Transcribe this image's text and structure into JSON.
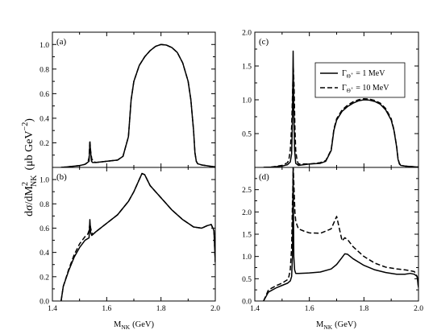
{
  "figure": {
    "ylabel_main": "dσ/dM",
    "ylabel_sup": "2",
    "ylabel_sub": "NK",
    "ylabel_units": "(μb GeV",
    "ylabel_units_sup": "−2",
    "ylabel_close": ")",
    "xlabel_main": "M",
    "xlabel_sub": "NK",
    "xlabel_units": "(GeV)"
  },
  "legend": {
    "gamma": "Γ",
    "theta": "Θ",
    "plus": "+",
    "entry1": "= 1 MeV",
    "entry2": "= 10 MeV"
  },
  "chart_data": [
    {
      "panel": "a",
      "label": "(a)",
      "type": "line",
      "xlim": [
        1.4,
        2.0
      ],
      "ylim": [
        0.0,
        1.1
      ],
      "xticks": [
        1.4,
        1.6,
        1.8,
        2.0
      ],
      "xticklabels_shown": false,
      "yticks": [
        0.0,
        0.2,
        0.4,
        0.6,
        0.8,
        1.0
      ],
      "yticklabels": [
        "",
        "0.2",
        "0.4",
        "0.6",
        "0.8",
        "1.0"
      ],
      "series": [
        {
          "style": "solid",
          "x": [
            1.432,
            1.45,
            1.5,
            1.52,
            1.535,
            1.538,
            1.541,
            1.544,
            1.548,
            1.56,
            1.6,
            1.64,
            1.66,
            1.68,
            1.69,
            1.7,
            1.72,
            1.74,
            1.76,
            1.78,
            1.8,
            1.82,
            1.84,
            1.86,
            1.88,
            1.9,
            1.91,
            1.92,
            1.925,
            1.93,
            1.935,
            1.95,
            1.98,
            2.0
          ],
          "y": [
            0.0,
            0.003,
            0.015,
            0.025,
            0.05,
            0.2,
            0.12,
            0.05,
            0.04,
            0.04,
            0.05,
            0.06,
            0.09,
            0.25,
            0.55,
            0.7,
            0.83,
            0.9,
            0.95,
            0.985,
            1.0,
            0.995,
            0.975,
            0.935,
            0.85,
            0.7,
            0.55,
            0.3,
            0.12,
            0.05,
            0.03,
            0.02,
            0.01,
            0.005
          ]
        },
        {
          "style": "dashed",
          "x": [
            1.432,
            1.45,
            1.5,
            1.52,
            1.53,
            1.535,
            1.538,
            1.541,
            1.545,
            1.55,
            1.56,
            1.6,
            1.64,
            1.66,
            1.68,
            1.69,
            1.7,
            1.72,
            1.74,
            1.76,
            1.78,
            1.8,
            1.82,
            1.84,
            1.86,
            1.88,
            1.9,
            1.91,
            1.92,
            1.925,
            1.93,
            1.935,
            1.95,
            1.98,
            2.0
          ],
          "y": [
            0.0,
            0.003,
            0.015,
            0.025,
            0.04,
            0.08,
            0.22,
            0.13,
            0.07,
            0.05,
            0.04,
            0.05,
            0.06,
            0.09,
            0.25,
            0.55,
            0.7,
            0.83,
            0.9,
            0.95,
            0.985,
            1.0,
            0.995,
            0.975,
            0.935,
            0.85,
            0.7,
            0.55,
            0.3,
            0.12,
            0.05,
            0.03,
            0.02,
            0.01,
            0.005
          ]
        }
      ]
    },
    {
      "panel": "b",
      "label": "(b)",
      "type": "line",
      "xlim": [
        1.4,
        2.0
      ],
      "ylim": [
        0.0,
        1.1
      ],
      "xticks": [
        1.4,
        1.6,
        1.8,
        2.0
      ],
      "xticklabels": [
        "1.4",
        "1.6",
        "1.8",
        "2.0"
      ],
      "yticks": [
        0.0,
        0.2,
        0.4,
        0.6,
        0.8,
        1.0
      ],
      "yticklabels": [
        "0.0",
        "0.2",
        "0.4",
        "0.6",
        "0.8",
        "1.0"
      ],
      "series": [
        {
          "style": "solid",
          "x": [
            1.432,
            1.44,
            1.46,
            1.48,
            1.5,
            1.52,
            1.535,
            1.538,
            1.541,
            1.545,
            1.56,
            1.6,
            1.64,
            1.68,
            1.7,
            1.72,
            1.73,
            1.74,
            1.76,
            1.8,
            1.84,
            1.88,
            1.9,
            1.92,
            1.95,
            1.97,
            1.985,
            1.995,
            2.0
          ],
          "y": [
            0.0,
            0.12,
            0.25,
            0.36,
            0.44,
            0.5,
            0.52,
            0.67,
            0.56,
            0.54,
            0.57,
            0.64,
            0.71,
            0.82,
            0.9,
            1.0,
            1.05,
            1.04,
            0.95,
            0.85,
            0.75,
            0.67,
            0.64,
            0.61,
            0.6,
            0.62,
            0.63,
            0.58,
            0.32
          ]
        },
        {
          "style": "dashed",
          "x": [
            1.432,
            1.44,
            1.46,
            1.48,
            1.5,
            1.52,
            1.53,
            1.535,
            1.538,
            1.541,
            1.545,
            1.55,
            1.56,
            1.6,
            1.64,
            1.68,
            1.7,
            1.72,
            1.73,
            1.74,
            1.76,
            1.8,
            1.84,
            1.88,
            1.9,
            1.92,
            1.95,
            1.97,
            1.985,
            1.995,
            2.0
          ],
          "y": [
            0.0,
            0.12,
            0.26,
            0.38,
            0.47,
            0.53,
            0.55,
            0.58,
            0.64,
            0.6,
            0.56,
            0.55,
            0.57,
            0.64,
            0.71,
            0.82,
            0.9,
            1.0,
            1.05,
            1.04,
            0.95,
            0.85,
            0.75,
            0.67,
            0.64,
            0.61,
            0.6,
            0.62,
            0.63,
            0.58,
            0.32
          ]
        }
      ]
    },
    {
      "panel": "c",
      "label": "(c)",
      "type": "line",
      "xlim": [
        1.4,
        2.0
      ],
      "ylim": [
        0.0,
        2.0
      ],
      "xticks": [
        1.4,
        1.6,
        1.8,
        2.0
      ],
      "xticklabels_shown": false,
      "yticks": [
        0.0,
        0.5,
        1.0,
        1.5,
        2.0
      ],
      "yticklabels": [
        "",
        "0.5",
        "1.0",
        "1.5",
        "2.0"
      ],
      "series": [
        {
          "style": "solid",
          "x": [
            1.432,
            1.46,
            1.5,
            1.52,
            1.53,
            1.535,
            1.538,
            1.5405,
            1.543,
            1.546,
            1.55,
            1.56,
            1.6,
            1.64,
            1.66,
            1.68,
            1.69,
            1.7,
            1.72,
            1.74,
            1.76,
            1.78,
            1.8,
            1.82,
            1.84,
            1.86,
            1.88,
            1.9,
            1.91,
            1.92,
            1.925,
            1.93,
            1.935,
            1.95,
            1.98,
            2.0
          ],
          "y": [
            0.0,
            0.005,
            0.02,
            0.04,
            0.08,
            0.2,
            0.7,
            1.72,
            0.8,
            0.25,
            0.06,
            0.03,
            0.05,
            0.06,
            0.09,
            0.25,
            0.55,
            0.7,
            0.83,
            0.9,
            0.95,
            0.985,
            1.0,
            0.995,
            0.975,
            0.935,
            0.85,
            0.7,
            0.55,
            0.3,
            0.12,
            0.05,
            0.03,
            0.02,
            0.01,
            0.005
          ]
        },
        {
          "style": "dashed",
          "x": [
            1.432,
            1.46,
            1.5,
            1.52,
            1.525,
            1.53,
            1.535,
            1.538,
            1.541,
            1.544,
            1.547,
            1.55,
            1.555,
            1.56,
            1.6,
            1.64,
            1.66,
            1.68,
            1.69,
            1.7,
            1.72,
            1.74,
            1.76,
            1.78,
            1.8,
            1.82,
            1.84,
            1.86,
            1.88,
            1.9,
            1.91,
            1.92,
            1.925,
            1.93,
            1.935,
            1.95,
            1.98,
            2.0
          ],
          "y": [
            0.0,
            0.005,
            0.03,
            0.07,
            0.12,
            0.25,
            0.6,
            1.05,
            1.5,
            1.2,
            0.6,
            0.25,
            0.1,
            0.05,
            0.05,
            0.07,
            0.1,
            0.26,
            0.57,
            0.72,
            0.85,
            0.92,
            0.97,
            1.0,
            1.015,
            1.01,
            0.99,
            0.95,
            0.87,
            0.72,
            0.56,
            0.31,
            0.13,
            0.06,
            0.03,
            0.02,
            0.01,
            0.005
          ]
        }
      ]
    },
    {
      "panel": "d",
      "label": "(d)",
      "type": "line",
      "xlim": [
        1.4,
        2.0
      ],
      "ylim": [
        0.0,
        3.0
      ],
      "xticks": [
        1.4,
        1.6,
        1.8,
        2.0
      ],
      "xticklabels": [
        "1.4",
        "1.6",
        "1.8",
        "2.0"
      ],
      "yticks": [
        0.0,
        0.5,
        1.0,
        1.5,
        2.0,
        2.5
      ],
      "yticklabels": [
        "0.0",
        "0.5",
        "1.0",
        "1.5",
        "2.0",
        "2.5"
      ],
      "series": [
        {
          "style": "solid",
          "x": [
            1.432,
            1.45,
            1.48,
            1.5,
            1.52,
            1.53,
            1.535,
            1.538,
            1.5405,
            1.543,
            1.546,
            1.55,
            1.56,
            1.6,
            1.64,
            1.68,
            1.7,
            1.72,
            1.73,
            1.74,
            1.76,
            1.8,
            1.84,
            1.88,
            1.92,
            1.95,
            1.97,
            1.985,
            1.995,
            2.0
          ],
          "y": [
            0.0,
            0.2,
            0.3,
            0.35,
            0.4,
            0.45,
            0.55,
            1.0,
            3.0,
            1.0,
            0.7,
            0.62,
            0.62,
            0.63,
            0.65,
            0.72,
            0.82,
            0.98,
            1.06,
            1.05,
            0.95,
            0.8,
            0.7,
            0.64,
            0.6,
            0.6,
            0.62,
            0.6,
            0.55,
            0.3
          ]
        },
        {
          "style": "dashed",
          "x": [
            1.432,
            1.45,
            1.48,
            1.5,
            1.52,
            1.525,
            1.53,
            1.535,
            1.538,
            1.541,
            1.544,
            1.547,
            1.55,
            1.555,
            1.56,
            1.58,
            1.6,
            1.64,
            1.68,
            1.7,
            1.72,
            1.73,
            1.74,
            1.76,
            1.8,
            1.84,
            1.88,
            1.92,
            1.95,
            1.97,
            1.985,
            1.995,
            2.0
          ],
          "y": [
            0.0,
            0.25,
            0.35,
            0.4,
            0.48,
            0.55,
            0.7,
            1.2,
            2.2,
            3.0,
            2.5,
            2.0,
            1.8,
            1.7,
            1.62,
            1.57,
            1.53,
            1.52,
            1.62,
            1.9,
            1.35,
            1.42,
            1.38,
            1.22,
            1.0,
            0.85,
            0.76,
            0.72,
            0.7,
            0.68,
            0.66,
            0.55,
            0.3
          ]
        }
      ]
    }
  ]
}
